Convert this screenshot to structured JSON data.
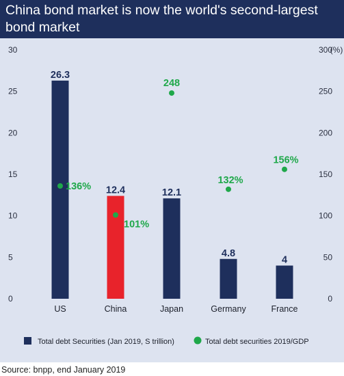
{
  "header": {
    "title": "China bond market is now the world's second-largest bond market"
  },
  "source": "Source: bnpp, end January 2019",
  "colors": {
    "header_bg": "#1e2f5c",
    "panel_bg": "#dde3f0",
    "bar": "#1e2f5c",
    "bar_highlight": "#e8232b",
    "dots": "#1fa84a"
  },
  "chart_data": {
    "type": "bar",
    "categories": [
      "US",
      "China",
      "Japan",
      "Germany",
      "France"
    ],
    "highlight_category": "China",
    "series": [
      {
        "name": "Total debt Securities (Jan 2019, S trillion)",
        "kind": "bar",
        "axis": "left",
        "values": [
          26.3,
          12.4,
          12.1,
          4.8,
          4
        ],
        "labels": [
          "26.3",
          "12.4",
          "12.1",
          "4.8",
          "4"
        ]
      },
      {
        "name": "Total debt securities 2019/GDP",
        "kind": "scatter",
        "axis": "right",
        "values": [
          136,
          101,
          248,
          132,
          156
        ],
        "labels": [
          "136%",
          "101%",
          "248",
          "132%",
          "156%"
        ]
      }
    ],
    "left_axis": {
      "ylim": [
        0,
        30
      ],
      "ticks": [
        "0",
        "5",
        "10",
        "15",
        "20",
        "25",
        "30"
      ]
    },
    "right_axis": {
      "ylim": [
        0,
        300
      ],
      "ticks": [
        "0",
        "50",
        "100",
        "150",
        "200",
        "250",
        "300"
      ],
      "unit_label": "(%)"
    },
    "grid": false,
    "legend": "bottom"
  }
}
